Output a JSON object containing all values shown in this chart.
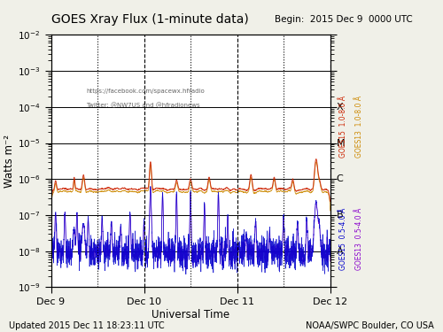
{
  "title": "GOES Xray Flux (1-minute data)",
  "begin_label": "Begin:  2015 Dec 9  0000 UTC",
  "ylabel": "Watts m⁻²",
  "xlabel": "Universal Time",
  "bottom_left": "Updated 2015 Dec 11 18:23:11 UTC",
  "bottom_right": "NOAA/SWPC Boulder, CO USA",
  "annotation1": "https://facebook.com/spacewx.hfradio",
  "annotation2": "Twitter: @NW7US and @hfradionews",
  "xtick_labels": [
    "Dec 9",
    "Dec 10",
    "Dec 11",
    "Dec 12"
  ],
  "bg_color": "#f0f0e8",
  "plot_bg_color": "#ffffff",
  "goes15_high_color": "#cc2200",
  "goes13_high_color": "#cc8800",
  "goes15_low_color": "#0000cc",
  "goes13_low_color": "#8800cc",
  "vline_days": [
    1,
    2,
    3
  ],
  "noon_vlines": [
    0.5,
    1.5,
    2.5
  ],
  "n_points": 4320,
  "seed": 42
}
